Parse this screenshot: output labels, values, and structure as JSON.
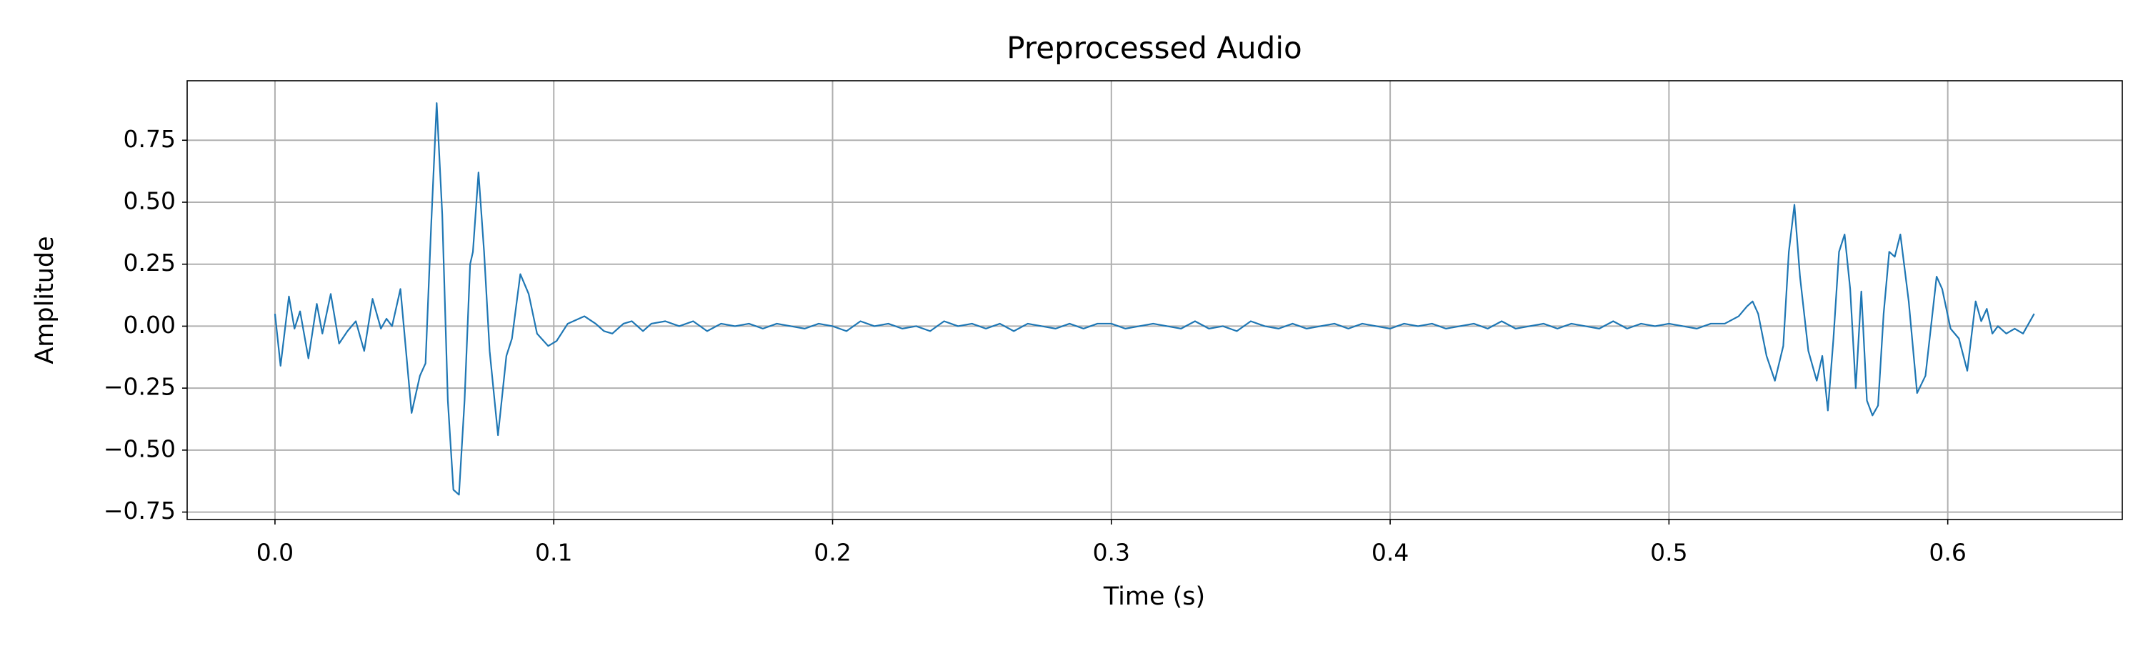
{
  "chart_data": {
    "type": "line",
    "title": "Preprocessed Audio",
    "x_label": "Time (s)",
    "y_label": "Amplitude",
    "grid": true,
    "xlim": [
      -0.0315,
      0.6626
    ],
    "ylim": [
      -0.78,
      0.99
    ],
    "xticks": [
      {
        "value": 0,
        "label": "0.0"
      },
      0.1,
      0.2,
      0.3,
      0.4,
      0.5,
      0.6
    ],
    "yticks": [
      {
        "value": -0.75,
        "label": "−0.75"
      },
      {
        "value": -0.5,
        "label": "−0.50"
      },
      {
        "value": -0.25,
        "label": "−0.25"
      },
      {
        "value": 0,
        "label": "0.00"
      },
      0.25,
      {
        "value": 0.5,
        "label": "0.50"
      },
      0.75
    ],
    "x": [
      0,
      0.002,
      0.005,
      0.007,
      0.009,
      0.012,
      0.015,
      0.017,
      0.02,
      0.023,
      0.026,
      0.029,
      0.032,
      0.035,
      0.038,
      0.04,
      0.042,
      0.045,
      0.047,
      0.049,
      0.052,
      0.054,
      0.056,
      0.058,
      0.06,
      0.062,
      0.064,
      0.066,
      0.068,
      0.07,
      0.071,
      0.073,
      0.075,
      0.077,
      0.08,
      0.083,
      0.085,
      0.088,
      0.091,
      0.094,
      0.098,
      0.101,
      0.105,
      0.111,
      0.115,
      0.118,
      0.121,
      0.125,
      0.128,
      0.132,
      0.135,
      0.14,
      0.145,
      0.15,
      0.155,
      0.16,
      0.165,
      0.17,
      0.175,
      0.18,
      0.185,
      0.19,
      0.195,
      0.2,
      0.205,
      0.21,
      0.215,
      0.22,
      0.225,
      0.23,
      0.235,
      0.24,
      0.245,
      0.25,
      0.255,
      0.26,
      0.265,
      0.27,
      0.275,
      0.28,
      0.285,
      0.29,
      0.295,
      0.3,
      0.305,
      0.31,
      0.315,
      0.32,
      0.325,
      0.33,
      0.335,
      0.34,
      0.345,
      0.35,
      0.355,
      0.36,
      0.365,
      0.37,
      0.375,
      0.38,
      0.385,
      0.39,
      0.395,
      0.4,
      0.405,
      0.41,
      0.415,
      0.42,
      0.425,
      0.43,
      0.435,
      0.44,
      0.445,
      0.45,
      0.455,
      0.46,
      0.465,
      0.47,
      0.475,
      0.48,
      0.485,
      0.49,
      0.495,
      0.5,
      0.505,
      0.51,
      0.515,
      0.52,
      0.525,
      0.528,
      0.53,
      0.532,
      0.535,
      0.538,
      0.541,
      0.543,
      0.545,
      0.547,
      0.55,
      0.553,
      0.555,
      0.557,
      0.559,
      0.561,
      0.563,
      0.565,
      0.567,
      0.569,
      0.571,
      0.573,
      0.575,
      0.577,
      0.579,
      0.581,
      0.583,
      0.586,
      0.589,
      0.592,
      0.596,
      0.598,
      0.601,
      0.604,
      0.607,
      0.61,
      0.612,
      0.614,
      0.616,
      0.618,
      0.621,
      0.624,
      0.627,
      0.631
    ],
    "series": [
      {
        "name": "Amplitude",
        "color": "#1f77b4",
        "values": [
          0.05,
          -0.16,
          0.12,
          -0.01,
          0.06,
          -0.13,
          0.09,
          -0.03,
          0.13,
          -0.07,
          -0.02,
          0.02,
          -0.1,
          0.11,
          -0.01,
          0.03,
          0.0,
          0.15,
          -0.1,
          -0.35,
          -0.2,
          -0.15,
          0.4,
          0.9,
          0.45,
          -0.3,
          -0.66,
          -0.68,
          -0.3,
          0.25,
          0.3,
          0.62,
          0.3,
          -0.1,
          -0.44,
          -0.12,
          -0.05,
          0.21,
          0.13,
          -0.03,
          -0.08,
          -0.06,
          0.01,
          0.04,
          0.01,
          -0.02,
          -0.03,
          0.01,
          0.02,
          -0.02,
          0.01,
          0.02,
          0.0,
          0.02,
          -0.02,
          0.01,
          0.0,
          0.01,
          -0.01,
          0.01,
          0.0,
          -0.01,
          0.01,
          0.0,
          -0.02,
          0.02,
          0.0,
          0.01,
          -0.01,
          0.0,
          -0.02,
          0.02,
          0.0,
          0.01,
          -0.01,
          0.01,
          -0.02,
          0.01,
          0.0,
          -0.01,
          0.01,
          -0.01,
          0.01,
          0.01,
          -0.01,
          0.0,
          0.01,
          0.0,
          -0.01,
          0.02,
          -0.01,
          0.0,
          -0.02,
          0.02,
          0.0,
          -0.01,
          0.01,
          -0.01,
          0.0,
          0.01,
          -0.01,
          0.01,
          0.0,
          -0.01,
          0.01,
          0.0,
          0.01,
          -0.01,
          0.0,
          0.01,
          -0.01,
          0.02,
          -0.01,
          0.0,
          0.01,
          -0.01,
          0.01,
          0.0,
          -0.01,
          0.02,
          -0.01,
          0.01,
          0.0,
          0.01,
          0.0,
          -0.01,
          0.01,
          0.01,
          0.04,
          0.08,
          0.1,
          0.05,
          -0.12,
          -0.22,
          -0.08,
          0.3,
          0.49,
          0.2,
          -0.1,
          -0.22,
          -0.12,
          -0.34,
          -0.05,
          0.3,
          0.37,
          0.15,
          -0.25,
          0.14,
          -0.3,
          -0.36,
          -0.32,
          0.05,
          0.3,
          0.28,
          0.37,
          0.1,
          -0.27,
          -0.2,
          0.2,
          0.15,
          -0.01,
          -0.05,
          -0.18,
          0.1,
          0.02,
          0.07,
          -0.03,
          0.0,
          -0.03,
          -0.01,
          -0.03,
          0.05
        ]
      }
    ]
  }
}
